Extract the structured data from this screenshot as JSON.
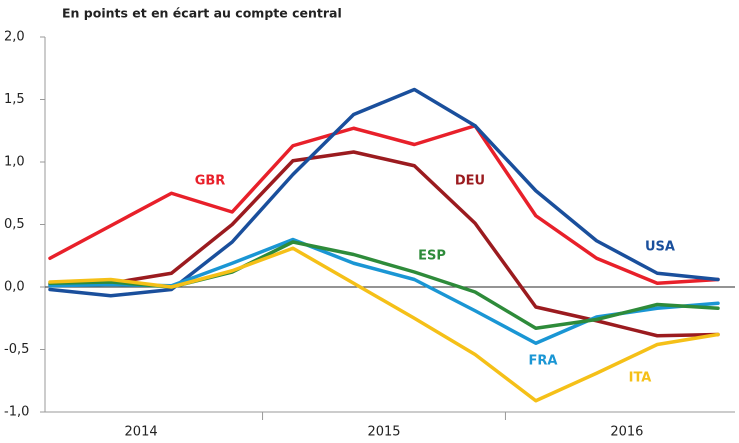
{
  "chart_data": {
    "type": "line",
    "title": "En points et en écart au compte central",
    "categories": [
      null,
      null,
      null,
      null,
      null,
      null,
      null,
      null,
      null,
      null,
      null,
      null
    ],
    "x_groups": [
      "2014",
      "2015",
      "2016"
    ],
    "ylim": [
      -1,
      2
    ],
    "yticks": [
      {
        "value": -1,
        "label": "-1,0"
      },
      {
        "value": -0.5,
        "label": "-0,5"
      },
      {
        "value": 0,
        "label": "0,0"
      },
      {
        "value": 0.5,
        "label": "0,5"
      },
      {
        "value": 1,
        "label": "1,0"
      },
      {
        "value": 1.5,
        "label": "1,5"
      },
      {
        "value": 2,
        "label": "2,0"
      }
    ],
    "series": [
      {
        "name": "GBR",
        "color": "#e8202a",
        "values": [
          0.23,
          0.49,
          0.75,
          0.6,
          1.13,
          1.27,
          1.14,
          1.29,
          0.57,
          0.23,
          0.03,
          0.06
        ]
      },
      {
        "name": "DEU",
        "color": "#9b1b1f",
        "values": [
          0.02,
          0.03,
          0.11,
          0.5,
          1.01,
          1.08,
          0.97,
          0.51,
          -0.16,
          -0.27,
          -0.39,
          -0.38
        ]
      },
      {
        "name": "USA",
        "color": "#1a4f9c",
        "values": [
          -0.02,
          -0.07,
          -0.02,
          0.36,
          0.9,
          1.38,
          1.58,
          1.29,
          0.77,
          0.37,
          0.11,
          0.06
        ]
      },
      {
        "name": "FRA",
        "color": "#1a96d4",
        "values": [
          0.01,
          0.02,
          0.01,
          0.19,
          0.38,
          0.19,
          0.06,
          -0.19,
          -0.45,
          -0.24,
          -0.17,
          -0.13
        ]
      },
      {
        "name": "ESP",
        "color": "#2e8b3a",
        "values": [
          0.03,
          0.04,
          0.0,
          0.12,
          0.36,
          0.26,
          0.12,
          -0.04,
          -0.33,
          -0.26,
          -0.14,
          -0.17
        ]
      },
      {
        "name": "ITA",
        "color": "#f5c018",
        "values": [
          0.04,
          0.06,
          0.0,
          0.13,
          0.31,
          0.03,
          -0.25,
          -0.54,
          -0.91,
          -0.69,
          -0.46,
          -0.38
        ]
      }
    ]
  }
}
